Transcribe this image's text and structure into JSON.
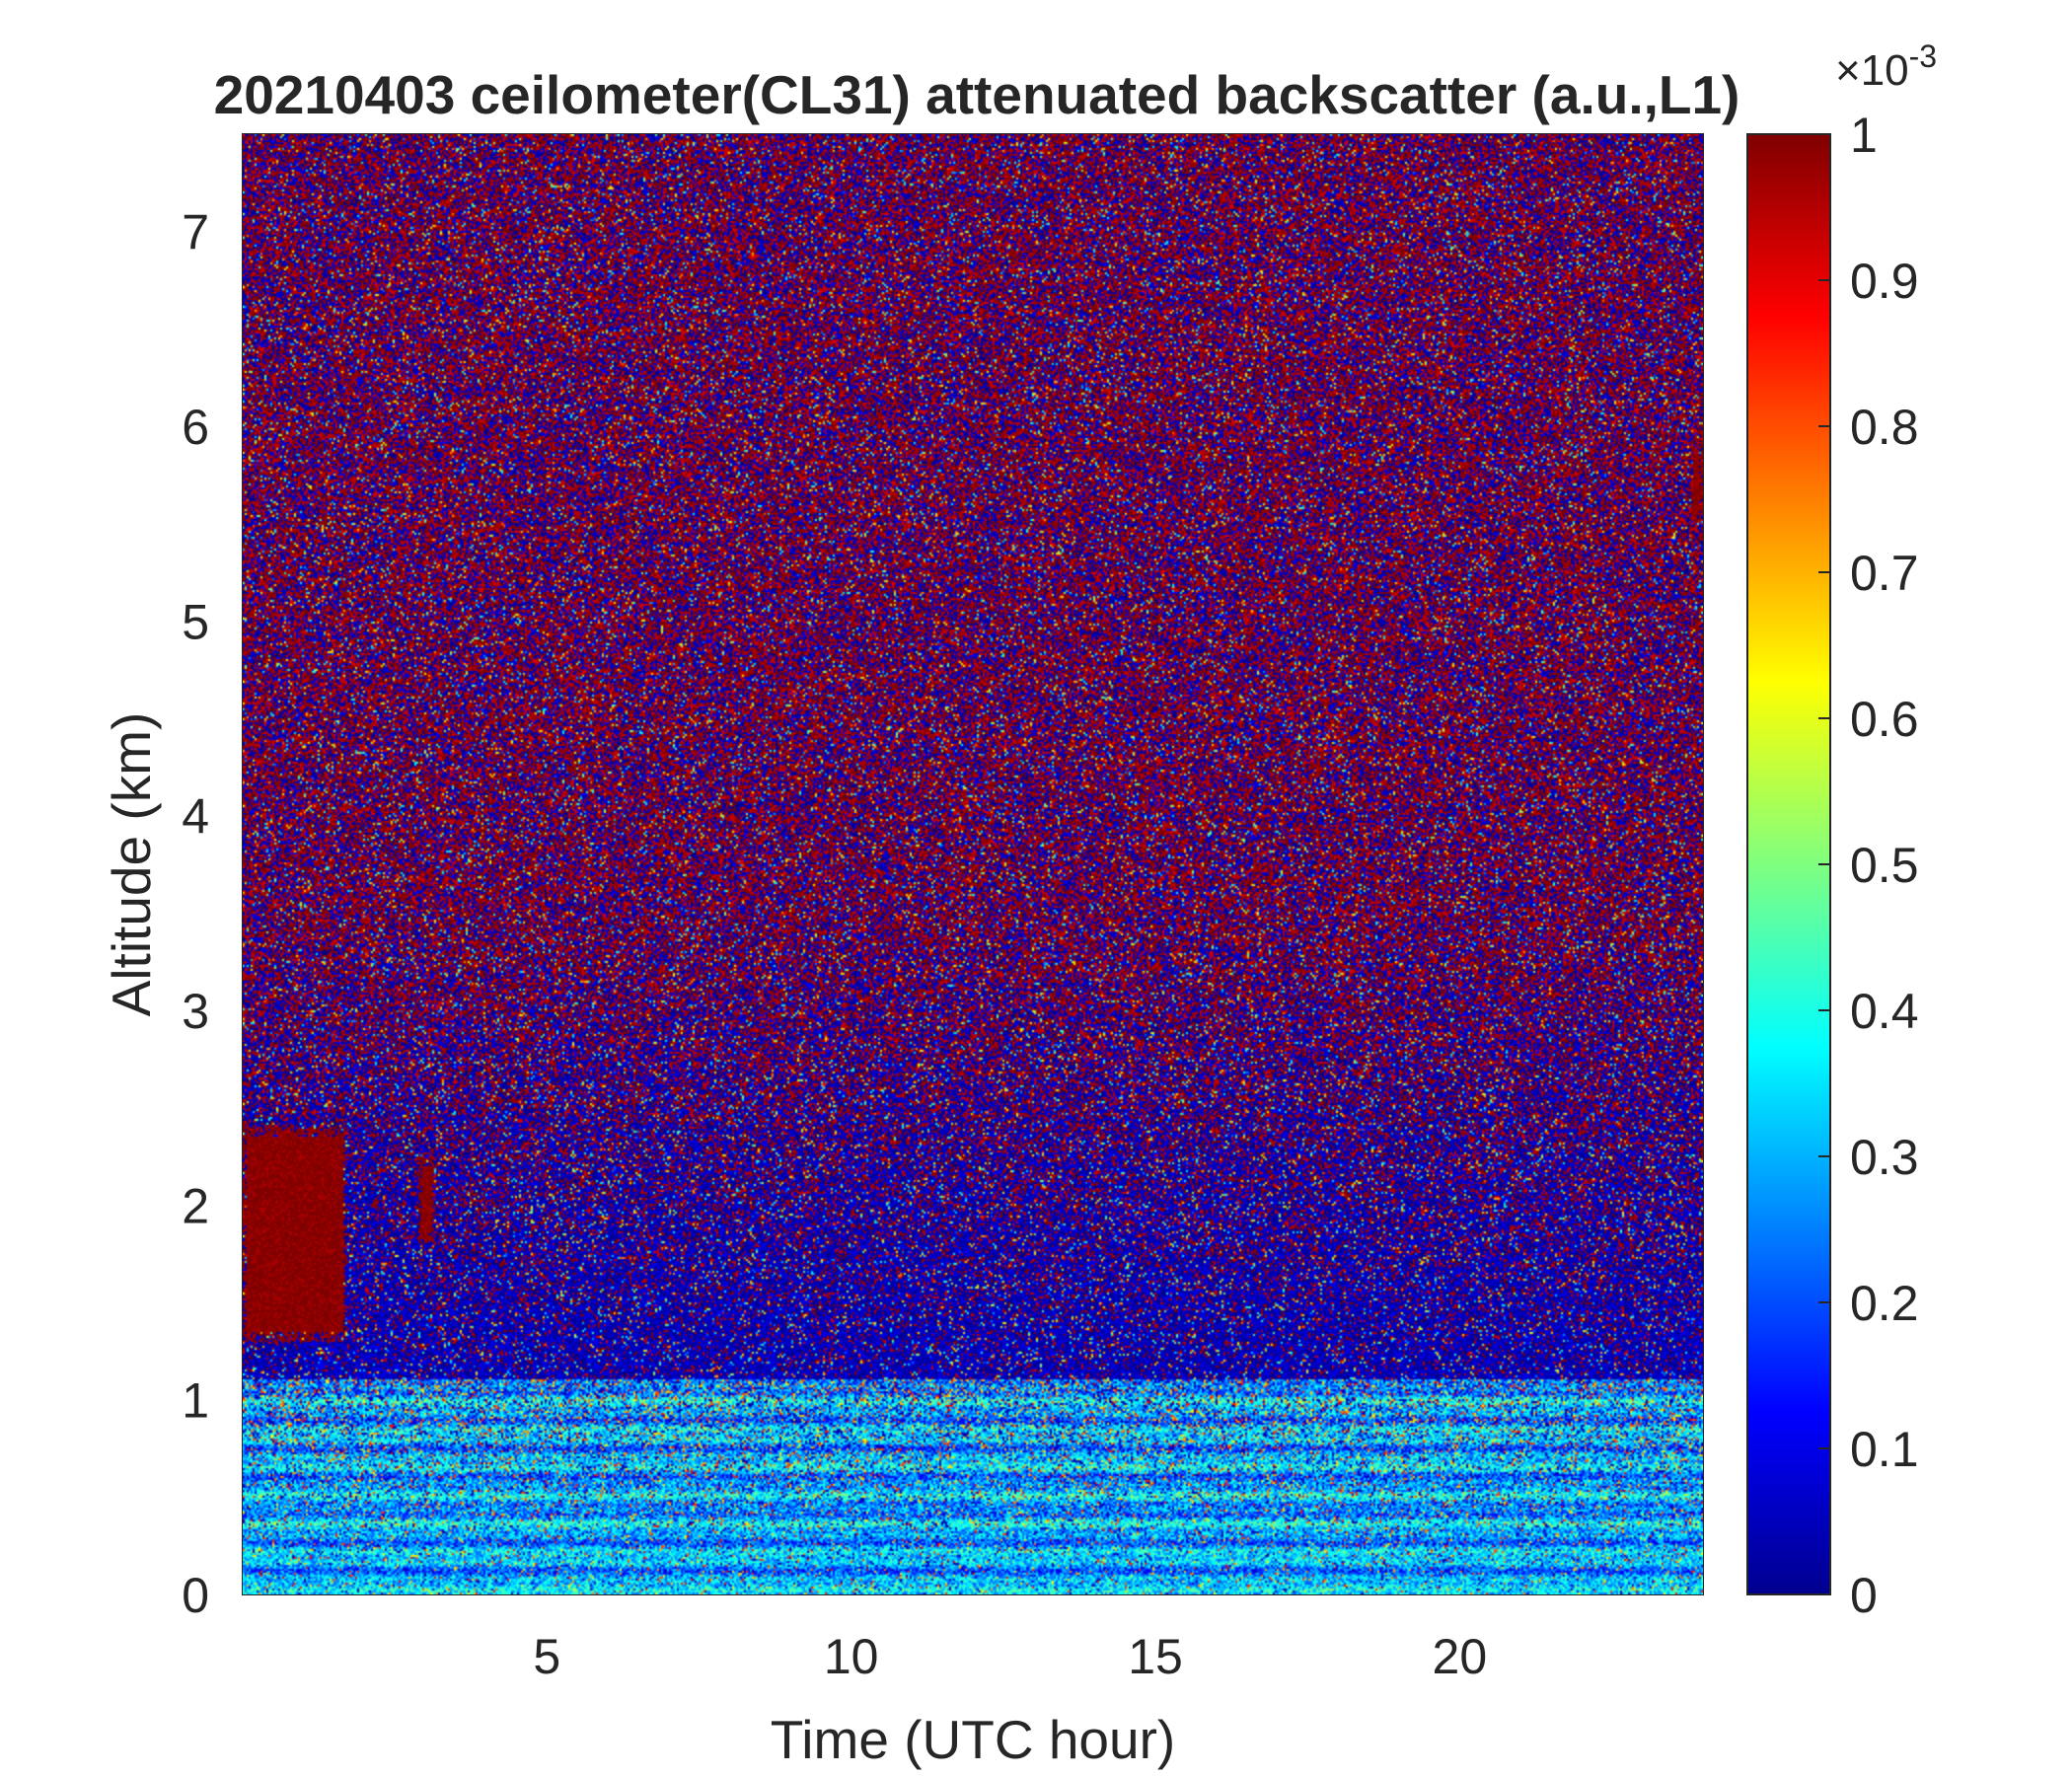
{
  "chart_data": {
    "type": "heatmap",
    "title": "20210403 ceilometer(CL31) attenuated backscatter (a.u.,L1)",
    "xlabel": "Time (UTC hour)",
    "ylabel": "Altitude (km)",
    "xlim": [
      0,
      24
    ],
    "ylim": [
      0,
      7.5
    ],
    "xticks": [
      5,
      10,
      15,
      20
    ],
    "yticks": [
      0,
      1,
      2,
      3,
      4,
      5,
      6,
      7
    ],
    "colorbar": {
      "colormap": "jet",
      "clim": [
        0,
        1
      ],
      "ticks": [
        0,
        0.1,
        0.2,
        0.3,
        0.4,
        0.5,
        0.6,
        0.7,
        0.8,
        0.9,
        1
      ],
      "exponent_base": "×10",
      "exponent": "-3"
    },
    "features": [
      {
        "name": "boundary-layer backscatter",
        "x_range": [
          0,
          24
        ],
        "y_range": [
          0,
          1.1
        ],
        "level": 0.3
      },
      {
        "name": "cloud",
        "x_range": [
          0,
          1.7
        ],
        "y_range": [
          1.3,
          2.4
        ],
        "level": 1.0
      },
      {
        "name": "cloud",
        "x_range": [
          2.9,
          3.15
        ],
        "y_range": [
          1.8,
          2.25
        ],
        "level": 1.0
      },
      {
        "name": "cloud",
        "x_range": [
          23.8,
          24
        ],
        "y_range": [
          5.5,
          5.9
        ],
        "level": 1.0
      }
    ]
  }
}
